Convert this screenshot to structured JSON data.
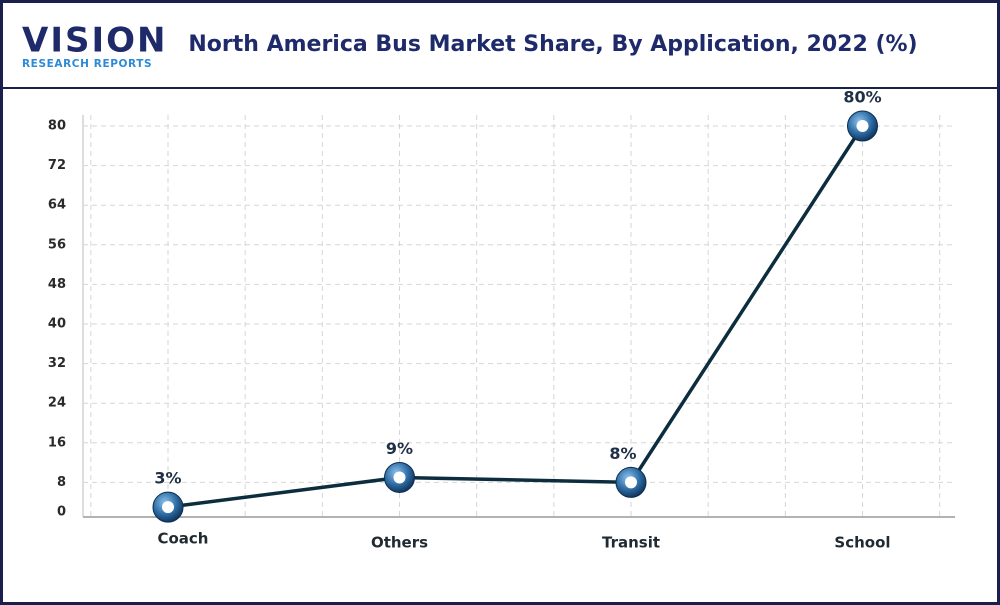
{
  "logo": {
    "name": "VISION",
    "tagline": "RESEARCH REPORTS"
  },
  "chart_data": {
    "type": "line",
    "title": "North America Bus Market Share, By Application, 2022 (%)",
    "categories": [
      "Coach",
      "Others",
      "Transit",
      "School"
    ],
    "values": [
      3,
      9,
      8,
      80
    ],
    "value_labels": [
      "3%",
      "9%",
      "8%",
      "80%"
    ],
    "color": "#0c2d3e",
    "ylim": [
      0,
      80
    ],
    "yticks": [
      0,
      8,
      16,
      24,
      32,
      40,
      48,
      56,
      64,
      72,
      80
    ],
    "grid": true
  }
}
